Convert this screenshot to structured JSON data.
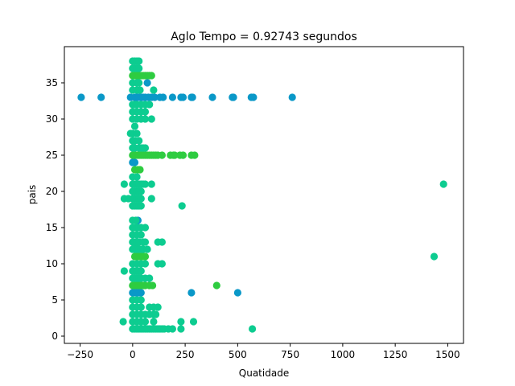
{
  "chart_data": {
    "type": "scatter",
    "title": "Aglo Tempo = 0.92743 segundos",
    "xlabel": "Quatidade",
    "ylabel": "pais",
    "xlim": [
      -325,
      1575
    ],
    "ylim": [
      -1,
      40
    ],
    "xticks": [
      -250,
      0,
      250,
      500,
      750,
      1000,
      1250,
      1500
    ],
    "yticks": [
      0,
      5,
      10,
      15,
      20,
      25,
      30,
      35
    ],
    "grid": false,
    "series": [
      {
        "color": "#0a98c8",
        "points": [
          [
            -245,
            33
          ],
          [
            -150,
            33
          ],
          [
            -10,
            33
          ],
          [
            10,
            33
          ],
          [
            20,
            33
          ],
          [
            30,
            33
          ],
          [
            40,
            33
          ],
          [
            50,
            33
          ],
          [
            60,
            33
          ],
          [
            75,
            33
          ],
          [
            90,
            33
          ],
          [
            105,
            33
          ],
          [
            130,
            33
          ],
          [
            145,
            33
          ],
          [
            190,
            33
          ],
          [
            230,
            33
          ],
          [
            240,
            33
          ],
          [
            280,
            33
          ],
          [
            285,
            33
          ],
          [
            380,
            33
          ],
          [
            475,
            33
          ],
          [
            480,
            33
          ],
          [
            565,
            33
          ],
          [
            575,
            33
          ],
          [
            760,
            33
          ],
          [
            70,
            35
          ],
          [
            30,
            36
          ],
          [
            0,
            24
          ],
          [
            10,
            24
          ],
          [
            25,
            16
          ],
          [
            0,
            6
          ],
          [
            10,
            6
          ],
          [
            20,
            6
          ],
          [
            30,
            6
          ],
          [
            40,
            6
          ],
          [
            280,
            6
          ],
          [
            500,
            6
          ]
        ]
      },
      {
        "color": "#2ecc40",
        "points": [
          [
            0,
            36
          ],
          [
            10,
            36
          ],
          [
            20,
            36
          ],
          [
            30,
            36
          ],
          [
            40,
            36
          ],
          [
            50,
            36
          ],
          [
            60,
            36
          ],
          [
            70,
            36
          ],
          [
            80,
            36
          ],
          [
            90,
            36
          ],
          [
            0,
            25
          ],
          [
            10,
            25
          ],
          [
            20,
            25
          ],
          [
            30,
            25
          ],
          [
            40,
            25
          ],
          [
            50,
            25
          ],
          [
            60,
            25
          ],
          [
            70,
            25
          ],
          [
            80,
            25
          ],
          [
            90,
            25
          ],
          [
            100,
            25
          ],
          [
            110,
            25
          ],
          [
            120,
            25
          ],
          [
            140,
            25
          ],
          [
            180,
            25
          ],
          [
            195,
            25
          ],
          [
            200,
            25
          ],
          [
            225,
            25
          ],
          [
            240,
            25
          ],
          [
            280,
            25
          ],
          [
            295,
            25
          ],
          [
            10,
            23
          ],
          [
            25,
            23
          ],
          [
            35,
            23
          ],
          [
            10,
            12
          ],
          [
            20,
            12
          ],
          [
            10,
            11
          ],
          [
            20,
            11
          ],
          [
            30,
            11
          ],
          [
            40,
            11
          ],
          [
            50,
            11
          ],
          [
            60,
            11
          ],
          [
            0,
            7
          ],
          [
            10,
            7
          ],
          [
            20,
            7
          ],
          [
            30,
            7
          ],
          [
            40,
            7
          ],
          [
            50,
            7
          ],
          [
            60,
            7
          ],
          [
            80,
            7
          ],
          [
            95,
            7
          ],
          [
            400,
            7
          ]
        ]
      },
      {
        "color": "#0dcc90",
        "points": [
          [
            0,
            38
          ],
          [
            10,
            38
          ],
          [
            20,
            38
          ],
          [
            30,
            38
          ],
          [
            0,
            37
          ],
          [
            10,
            37
          ],
          [
            20,
            37
          ],
          [
            30,
            37
          ],
          [
            0,
            35
          ],
          [
            20,
            35
          ],
          [
            30,
            35
          ],
          [
            0,
            34
          ],
          [
            20,
            34
          ],
          [
            35,
            34
          ],
          [
            100,
            34
          ],
          [
            0,
            32
          ],
          [
            10,
            32
          ],
          [
            20,
            32
          ],
          [
            40,
            32
          ],
          [
            60,
            32
          ],
          [
            80,
            32
          ],
          [
            0,
            31
          ],
          [
            20,
            31
          ],
          [
            40,
            31
          ],
          [
            60,
            31
          ],
          [
            0,
            30
          ],
          [
            20,
            30
          ],
          [
            40,
            30
          ],
          [
            60,
            30
          ],
          [
            90,
            30
          ],
          [
            10,
            29
          ],
          [
            -10,
            28
          ],
          [
            0,
            28
          ],
          [
            20,
            28
          ],
          [
            0,
            27
          ],
          [
            10,
            27
          ],
          [
            30,
            27
          ],
          [
            0,
            26
          ],
          [
            10,
            26
          ],
          [
            30,
            26
          ],
          [
            40,
            26
          ],
          [
            50,
            26
          ],
          [
            60,
            26
          ],
          [
            0,
            22
          ],
          [
            20,
            22
          ],
          [
            0,
            21
          ],
          [
            10,
            21
          ],
          [
            20,
            21
          ],
          [
            30,
            21
          ],
          [
            40,
            21
          ],
          [
            50,
            21
          ],
          [
            60,
            21
          ],
          [
            90,
            21
          ],
          [
            -40,
            21
          ],
          [
            1480,
            21
          ],
          [
            0,
            20
          ],
          [
            10,
            20
          ],
          [
            20,
            20
          ],
          [
            30,
            20
          ],
          [
            40,
            20
          ],
          [
            -40,
            19
          ],
          [
            -20,
            19
          ],
          [
            0,
            19
          ],
          [
            10,
            19
          ],
          [
            20,
            19
          ],
          [
            30,
            19
          ],
          [
            40,
            19
          ],
          [
            90,
            19
          ],
          [
            0,
            18
          ],
          [
            10,
            18
          ],
          [
            20,
            18
          ],
          [
            30,
            18
          ],
          [
            40,
            18
          ],
          [
            235,
            18
          ],
          [
            0,
            16
          ],
          [
            15,
            16
          ],
          [
            0,
            15
          ],
          [
            10,
            15
          ],
          [
            20,
            15
          ],
          [
            30,
            15
          ],
          [
            40,
            15
          ],
          [
            60,
            15
          ],
          [
            0,
            14
          ],
          [
            20,
            14
          ],
          [
            40,
            14
          ],
          [
            0,
            13
          ],
          [
            10,
            13
          ],
          [
            20,
            13
          ],
          [
            30,
            13
          ],
          [
            50,
            13
          ],
          [
            60,
            13
          ],
          [
            120,
            13
          ],
          [
            140,
            13
          ],
          [
            0,
            12
          ],
          [
            10,
            12
          ],
          [
            20,
            12
          ],
          [
            30,
            12
          ],
          [
            40,
            12
          ],
          [
            50,
            12
          ],
          [
            70,
            12
          ],
          [
            0,
            10
          ],
          [
            20,
            10
          ],
          [
            40,
            10
          ],
          [
            60,
            10
          ],
          [
            120,
            10
          ],
          [
            140,
            10
          ],
          [
            1435,
            11
          ],
          [
            -40,
            9
          ],
          [
            0,
            9
          ],
          [
            10,
            9
          ],
          [
            20,
            9
          ],
          [
            30,
            9
          ],
          [
            40,
            9
          ],
          [
            0,
            8
          ],
          [
            10,
            8
          ],
          [
            20,
            8
          ],
          [
            30,
            8
          ],
          [
            40,
            8
          ],
          [
            60,
            8
          ],
          [
            80,
            8
          ],
          [
            0,
            5
          ],
          [
            20,
            5
          ],
          [
            40,
            5
          ],
          [
            0,
            4
          ],
          [
            20,
            4
          ],
          [
            40,
            4
          ],
          [
            80,
            4
          ],
          [
            100,
            4
          ],
          [
            120,
            4
          ],
          [
            0,
            3
          ],
          [
            20,
            3
          ],
          [
            40,
            3
          ],
          [
            60,
            3
          ],
          [
            80,
            3
          ],
          [
            100,
            3
          ],
          [
            110,
            3
          ],
          [
            -45,
            2
          ],
          [
            0,
            2
          ],
          [
            20,
            2
          ],
          [
            40,
            2
          ],
          [
            60,
            2
          ],
          [
            100,
            2
          ],
          [
            230,
            2
          ],
          [
            290,
            2
          ],
          [
            0,
            1
          ],
          [
            10,
            1
          ],
          [
            20,
            1
          ],
          [
            30,
            1
          ],
          [
            40,
            1
          ],
          [
            50,
            1
          ],
          [
            60,
            1
          ],
          [
            70,
            1
          ],
          [
            80,
            1
          ],
          [
            90,
            1
          ],
          [
            100,
            1
          ],
          [
            110,
            1
          ],
          [
            120,
            1
          ],
          [
            130,
            1
          ],
          [
            140,
            1
          ],
          [
            150,
            1
          ],
          [
            170,
            1
          ],
          [
            190,
            1
          ],
          [
            230,
            1
          ],
          [
            570,
            1
          ]
        ]
      }
    ]
  }
}
